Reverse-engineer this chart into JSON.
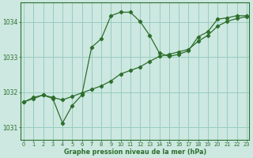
{
  "line_jagged_x": [
    0,
    1,
    2,
    3,
    4,
    5,
    6,
    7,
    8,
    9,
    10,
    11,
    12,
    13,
    14,
    15,
    16,
    17,
    18,
    19,
    20,
    21,
    22,
    23
  ],
  "line_jagged_y": [
    1031.72,
    1031.85,
    1031.92,
    1031.82,
    1031.12,
    1031.62,
    1031.92,
    1033.28,
    1033.52,
    1034.18,
    1034.28,
    1034.28,
    1034.02,
    1033.62,
    1033.12,
    1033.02,
    1033.08,
    1033.18,
    1033.58,
    1033.72,
    1034.08,
    1034.12,
    1034.18,
    1034.18
  ],
  "line_smooth_x": [
    0,
    1,
    2,
    3,
    4,
    5,
    6,
    7,
    8,
    9,
    10,
    11,
    12,
    13,
    14,
    15,
    16,
    17,
    18,
    19,
    20,
    21,
    22,
    23
  ],
  "line_smooth_y": [
    1031.72,
    1031.82,
    1031.92,
    1031.85,
    1031.78,
    1031.88,
    1031.98,
    1032.08,
    1032.18,
    1032.32,
    1032.52,
    1032.62,
    1032.72,
    1032.88,
    1033.02,
    1033.08,
    1033.15,
    1033.22,
    1033.45,
    1033.62,
    1033.88,
    1034.02,
    1034.1,
    1034.15
  ],
  "bg_color": "#cce8e0",
  "grid_color": "#99ccc0",
  "line_color": "#2d6e2d",
  "marker": "D",
  "marker_size": 2.2,
  "xlabel": "Graphe pression niveau de la mer (hPa)",
  "xticks": [
    0,
    1,
    2,
    3,
    4,
    5,
    6,
    7,
    8,
    9,
    10,
    11,
    12,
    13,
    14,
    15,
    16,
    17,
    18,
    19,
    20,
    21,
    22,
    23
  ],
  "yticks": [
    1031,
    1032,
    1033,
    1034
  ],
  "ylim": [
    1030.65,
    1034.55
  ],
  "xlim": [
    -0.3,
    23.3
  ]
}
